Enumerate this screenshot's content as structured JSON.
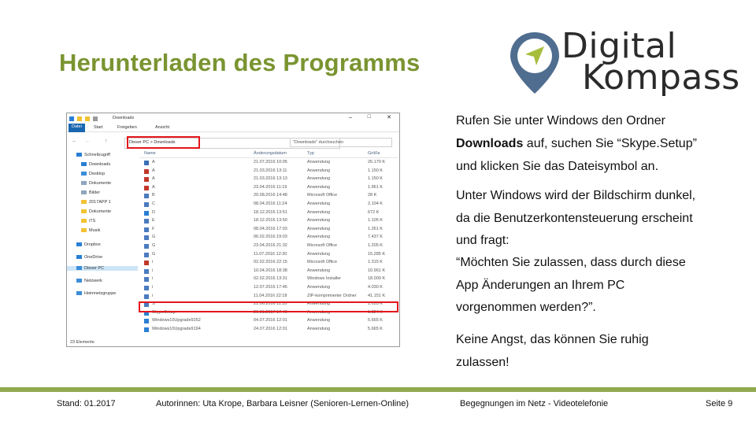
{
  "slide": {
    "title": "Herunterladen des Programms",
    "logo": {
      "line1": "Digital",
      "line2": "Kompass",
      "accent_color": "#a6bd3b",
      "pin_color": "#4f6d8f"
    }
  },
  "explorer": {
    "window_title": "Downloads",
    "tabs": [
      "Datei",
      "Start",
      "Freigeben",
      "Ansicht"
    ],
    "address": "Dieser PC > Downloads",
    "search_placeholder": "\"Downloads\" durchsuchen",
    "columns": [
      "Name",
      "Änderungsdatum",
      "Typ",
      "Größe"
    ],
    "sidebar": [
      "Schnellzugriff",
      "Downloads",
      "Desktop",
      "Dokumente",
      "Bilder",
      "2017APP 1",
      "Dokumente",
      "iTS",
      "Musik",
      "Dropbox",
      "OneDrive",
      "Dieser PC",
      "Netzwerk",
      "Heimnetzgruppe"
    ],
    "files": [
      {
        "name": "A",
        "date": "21.07.2016 10:05",
        "type": "Anwendung",
        "size": "26.170 K"
      },
      {
        "name": "A",
        "date": "21.03.2016 13:11",
        "type": "Anwendung",
        "size": "1.150 K"
      },
      {
        "name": "A",
        "date": "21.03.2016 13:13",
        "type": "Anwendung",
        "size": "1.150 K"
      },
      {
        "name": "A",
        "date": "23.04.2016 11:19",
        "type": "Anwendung",
        "size": "1.961 K"
      },
      {
        "name": "B",
        "date": "20.08.2016 14:48",
        "type": "Microsoft Office",
        "size": "28 K"
      },
      {
        "name": "C",
        "date": "08.04.2016 11:24",
        "type": "Anwendung",
        "size": "2.104 K"
      },
      {
        "name": "D",
        "date": "18.12.2016 13:51",
        "type": "Anwendung",
        "size": "672 K"
      },
      {
        "name": "E",
        "date": "18.12.2016 13:50",
        "type": "Anwendung",
        "size": "1.105 K"
      },
      {
        "name": "F",
        "date": "08.04.2016 17:03",
        "type": "Anwendung",
        "size": "1.261 K"
      },
      {
        "name": "G",
        "date": "06.02.2016 19:03",
        "type": "Anwendung",
        "size": "7.437 K"
      },
      {
        "name": "G",
        "date": "23.04.2016 21:32",
        "type": "Microsoft Office",
        "size": "1.205 K"
      },
      {
        "name": "G",
        "date": "11.07.2016 12:30",
        "type": "Anwendung",
        "size": "15.285 K"
      },
      {
        "name": "i",
        "date": "02.02.2016 22:15",
        "type": "Microsoft Office",
        "size": "1.315 K"
      },
      {
        "name": "i",
        "date": "10.04.2016 18:38",
        "type": "Anwendung",
        "size": "10.961 K"
      },
      {
        "name": "i",
        "date": "02.02.2016 13:31",
        "type": "Windows Installer",
        "size": "18.000 K"
      },
      {
        "name": "i",
        "date": "12.07.2016 17:46",
        "type": "Anwendung",
        "size": "4.030 K"
      },
      {
        "name": "i",
        "date": "11.04.2016 22:18",
        "type": "ZIP-komprimierter Ordner",
        "size": "41.151 K"
      },
      {
        "name": "S",
        "date": "21.06.2016 11:35",
        "type": "Anwendung",
        "size": "1.055 K"
      },
      {
        "name": "SkypeSetup",
        "date": "26.01.2017 17:40",
        "type": "Anwendung",
        "size": "1.324 K"
      },
      {
        "name": "Windows10Upgrade9252",
        "date": "04.07.2016 12:01",
        "type": "Anwendung",
        "size": "5.665 K"
      },
      {
        "name": "Windows10Upgrade9194",
        "date": "24.07.2016 12:01",
        "type": "Anwendung",
        "size": "5.665 K"
      }
    ],
    "status": "23 Elemente"
  },
  "text": {
    "p1_line1": "Rufen Sie unter Windows den Ordner",
    "p1_bold": "Downloads",
    "p1_line2_rest": " auf, suchen Sie “Skype.Setup”",
    "p1_line3": "und klicken Sie das Dateisymbol an.",
    "p2_line1": "Unter Windows wird der Bildschirm dunkel,",
    "p2_line2": "da die Benutzerkontensteuerung erscheint",
    "p2_line3": "und fragt:",
    "p2_line4": "“Möchten Sie zulassen, dass durch diese",
    "p2_line5": "App Änderungen an Ihrem PC",
    "p2_line6": "vorgenommen werden?”.",
    "p3_line1": "Keine Angst, das können Sie ruhig",
    "p3_line2": "zulassen!"
  },
  "footer": {
    "stand": "Stand: 01.2017",
    "authors": "Autorinnen: Uta Krope, Barbara Leisner (Senioren-Lernen-Online)",
    "topic": "Begegnungen im Netz - Videotelefonie",
    "page": "Seite 9",
    "bar_color": "#92a94e"
  }
}
